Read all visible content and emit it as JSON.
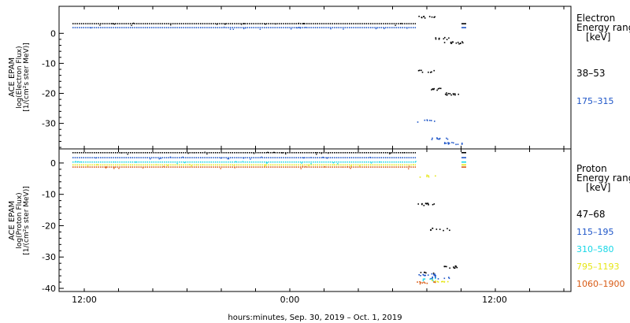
{
  "colors": {
    "black": "#000000",
    "blue": "#1f56c8",
    "cyan": "#17d7e6",
    "yellow": "#e6e616",
    "orange": "#d85a14",
    "frame": "#000000"
  },
  "chart_data": [
    {
      "type": "scatter",
      "panel": "electron",
      "ylabel_lines": [
        "ACE EPAM",
        "log(Electron Flux)",
        "[1/(cm²s ster MeV)]"
      ],
      "yticks": [
        0,
        -10,
        -20,
        -30
      ],
      "ylim": [
        -38.5,
        9
      ],
      "legend_title_lines": [
        "Electron",
        "Energy ranges",
        "[keV]"
      ],
      "series": [
        {
          "name": "38–53",
          "color": "#000000",
          "baseline": 3.2,
          "gap_levels": [
            5.5,
            -1.5,
            -3,
            -12.5,
            -18.5,
            -20
          ]
        },
        {
          "name": "175–315",
          "color": "#1f56c8",
          "baseline": 1.9,
          "gap_levels": [
            -29,
            -35,
            -36.5
          ]
        }
      ]
    },
    {
      "type": "scatter",
      "panel": "proton",
      "ylabel_lines": [
        "ACE EPAM",
        "log(Proton Flux)",
        "[1/(cm²s ster MeV)]"
      ],
      "yticks": [
        0,
        -10,
        -20,
        -30,
        -40
      ],
      "ylim": [
        -41,
        4.5
      ],
      "legend_title_lines": [
        "Proton",
        "Energy ranges",
        "[keV]"
      ],
      "series": [
        {
          "name": "47–68",
          "color": "#000000",
          "baseline": 3.3,
          "gap_levels": [
            -13,
            -21,
            -33,
            -35
          ]
        },
        {
          "name": "115–195",
          "color": "#1f56c8",
          "baseline": 1.7,
          "gap_levels": [
            -35.5,
            -36.5
          ]
        },
        {
          "name": "310–580",
          "color": "#17d7e6",
          "baseline": 0.3,
          "gap_levels": [
            -37
          ]
        },
        {
          "name": "795–1193",
          "color": "#e6e616",
          "baseline": -0.6,
          "gap_levels": [
            -4,
            -37.5
          ]
        },
        {
          "name": "1060–1900",
          "color": "#d85a14",
          "baseline": -1.3,
          "gap_levels": [
            -38
          ]
        }
      ]
    }
  ],
  "x_axis": {
    "ticks": [
      "12:00",
      "0:00",
      "12:00"
    ],
    "label": "hours:minutes, Sep. 30, 2019 – Oct.  1, 2019"
  }
}
